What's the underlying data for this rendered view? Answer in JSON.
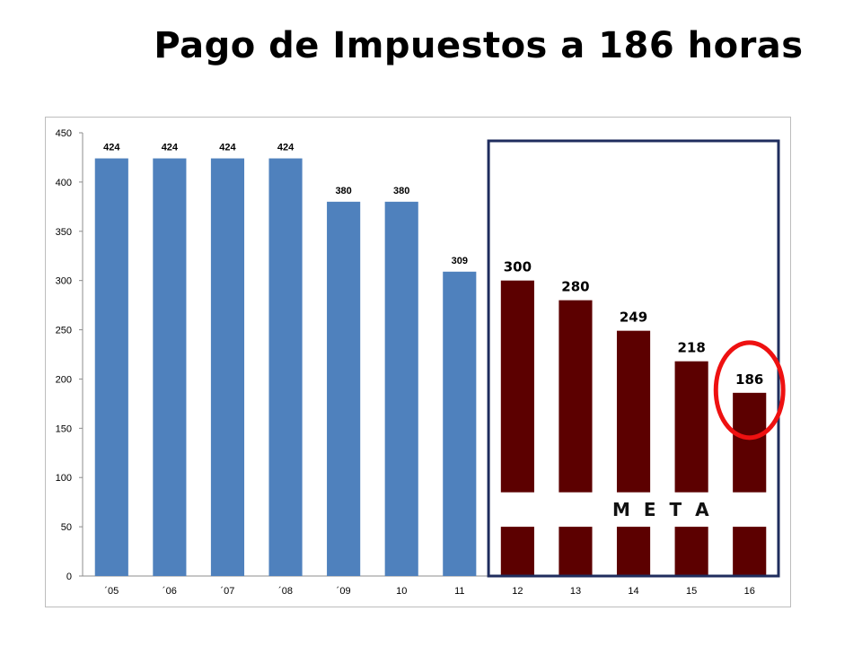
{
  "title": "Pago de Impuestos a 186 horas",
  "meta_label": "M E T A",
  "colors": {
    "historic": "#4f81bd",
    "goal": "#5c0000",
    "goal_box": "#1f2d5e",
    "highlight": "#ee1111"
  },
  "chart_data": {
    "type": "bar",
    "categories": [
      "´05",
      "´06",
      "´07",
      "´08",
      "´09",
      "10",
      "11",
      "12",
      "13",
      "14",
      "15",
      "16"
    ],
    "values": [
      424,
      424,
      424,
      424,
      380,
      380,
      309,
      300,
      280,
      249,
      218,
      186
    ],
    "data_labels": [
      "424",
      "424",
      "424",
      "424",
      "380",
      "380",
      "309",
      "300",
      "280",
      "249",
      "218",
      "186"
    ],
    "goal_start_index": 7,
    "highlight_index": 11,
    "ylim": [
      0,
      450
    ],
    "yticks": [
      0,
      50,
      100,
      150,
      200,
      250,
      300,
      350,
      400,
      450
    ],
    "meta_band": [
      50,
      85
    ],
    "title": "",
    "xlabel": "",
    "ylabel": "",
    "grid": false,
    "legend": "none"
  }
}
